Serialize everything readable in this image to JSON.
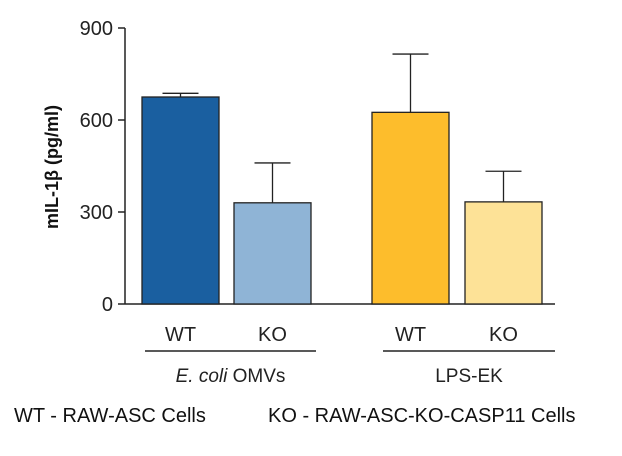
{
  "chart_data": {
    "type": "bar",
    "ylabel": "mIL-1β (pg/ml)",
    "ylim": [
      0,
      900
    ],
    "yticks": [
      "0",
      "300",
      "600",
      "900"
    ],
    "bars": [
      {
        "group": "E. coli OMVs",
        "category": "WT",
        "value": 675,
        "error": 12,
        "color": "#1a5fa0"
      },
      {
        "group": "E. coli OMVs",
        "category": "KO",
        "value": 330,
        "error": 130,
        "color": "#8fb4d6"
      },
      {
        "group": "LPS-EK",
        "category": "WT",
        "value": 625,
        "error": 190,
        "color": "#fdbd2c"
      },
      {
        "group": "LPS-EK",
        "category": "KO",
        "value": 333,
        "error": 100,
        "color": "#fde297"
      }
    ],
    "groups": [
      {
        "label_italic": "E. coli",
        "label_rest": " OMVs"
      },
      {
        "label_italic": "",
        "label_rest": "LPS-EK"
      }
    ]
  },
  "legend": {
    "wt": "WT - RAW-ASC Cells",
    "ko": "KO - RAW-ASC-KO-CASP11  Cells"
  }
}
